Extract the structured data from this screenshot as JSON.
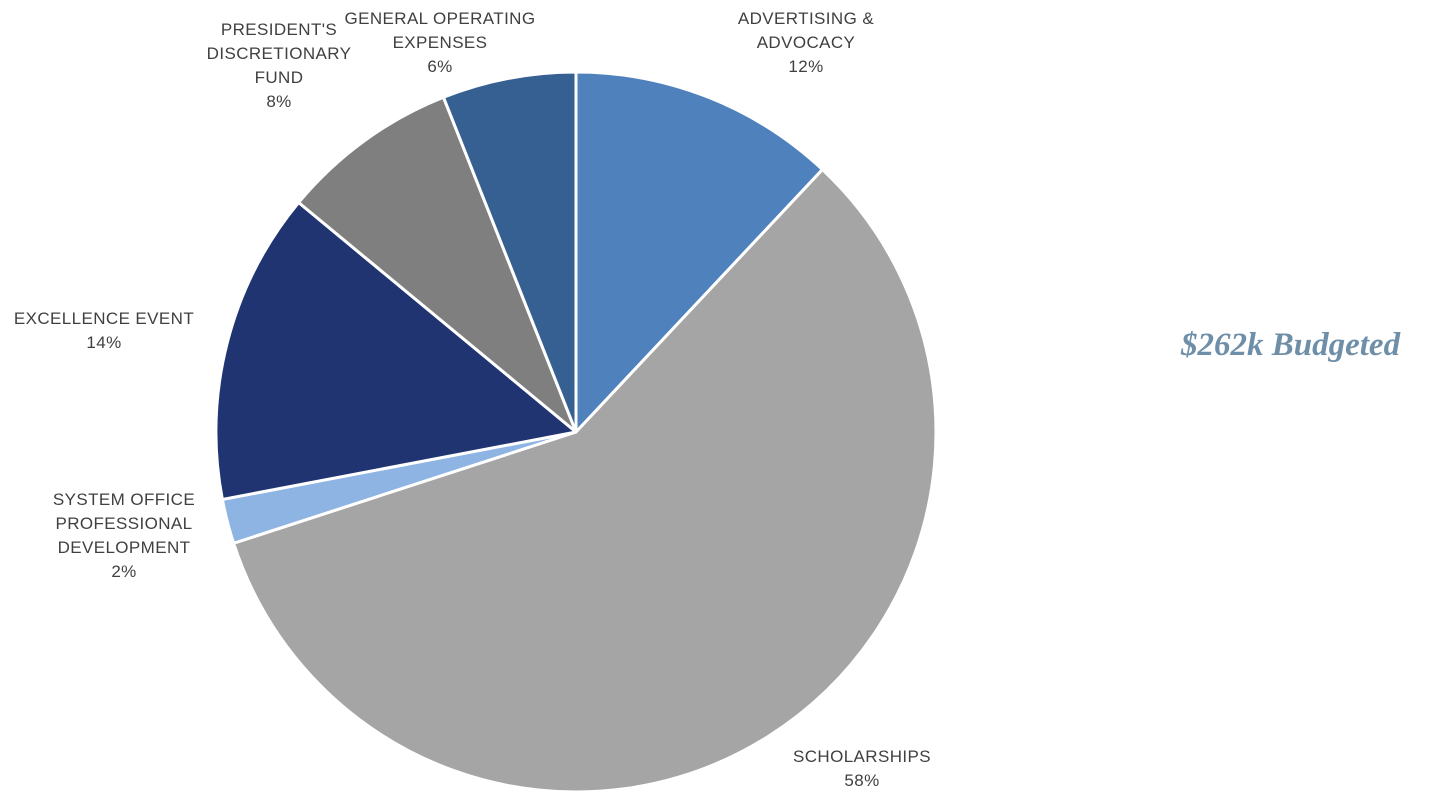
{
  "chart_data": {
    "type": "pie",
    "slices": [
      {
        "label_lines": [
          "ADVERTISING &",
          "ADVOCACY"
        ],
        "percent_label": "12%",
        "value": 12,
        "color": "#4f81bd"
      },
      {
        "label_lines": [
          "SCHOLARSHIPS"
        ],
        "percent_label": "58%",
        "value": 58,
        "color": "#a5a5a5"
      },
      {
        "label_lines": [
          "SYSTEM OFFICE",
          "PROFESSIONAL",
          "DEVELOPMENT"
        ],
        "percent_label": "2%",
        "value": 2,
        "color": "#8eb4e3"
      },
      {
        "label_lines": [
          "EXCELLENCE EVENT"
        ],
        "percent_label": "14%",
        "value": 14,
        "color": "#1f3470"
      },
      {
        "label_lines": [
          "PRESIDENT'S",
          "DISCRETIONARY",
          "FUND"
        ],
        "percent_label": "8%",
        "value": 8,
        "color": "#7f7f7f"
      },
      {
        "label_lines": [
          "GENERAL OPERATING",
          "EXPENSES"
        ],
        "percent_label": "6%",
        "value": 6,
        "color": "#366092"
      }
    ],
    "start_angle_deg": 0,
    "direction": "clockwise",
    "legend": "none"
  },
  "annotation": {
    "text": "$262k Budgeted"
  }
}
